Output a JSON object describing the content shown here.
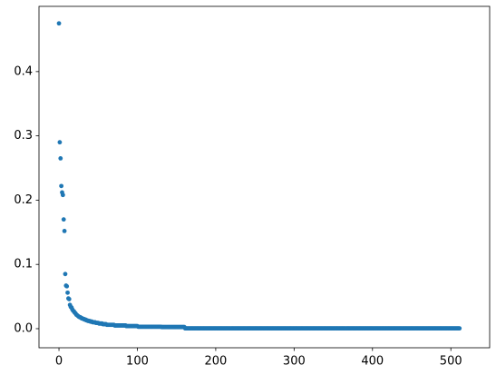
{
  "chart_data": {
    "type": "scatter",
    "color": "#1f77b4",
    "x": [
      0,
      1,
      2,
      3,
      4,
      5,
      6,
      7,
      8,
      9,
      10,
      11,
      12,
      13,
      14,
      15,
      16,
      17,
      18,
      19,
      20,
      21,
      22,
      23,
      24,
      25,
      26,
      27,
      28,
      29,
      30,
      31,
      32,
      33,
      34,
      35,
      36,
      37,
      38,
      39,
      40,
      41,
      42,
      43,
      44,
      45,
      46,
      47,
      48,
      49,
      50,
      51,
      52,
      53,
      54,
      55,
      56,
      57,
      58,
      59,
      60,
      61,
      62,
      63,
      64,
      65,
      66,
      67,
      68,
      69,
      70,
      71,
      72,
      73,
      74,
      75,
      76,
      77,
      78,
      79,
      80,
      81,
      82,
      83,
      84,
      85,
      86,
      87,
      88,
      89,
      90,
      91,
      92,
      93,
      94,
      95,
      96,
      97,
      98,
      99,
      100,
      101,
      102,
      103,
      104,
      105,
      106,
      107,
      108,
      109,
      110,
      111,
      112,
      113,
      114,
      115,
      116,
      117,
      118,
      119,
      120,
      121,
      122,
      123,
      124,
      125,
      126,
      127,
      128,
      129,
      130,
      131,
      132,
      133,
      134,
      135,
      136,
      137,
      138,
      139,
      140,
      141,
      142,
      143,
      144,
      145,
      146,
      147,
      148,
      149,
      150,
      151,
      152,
      153,
      154,
      155,
      156,
      157,
      158,
      159,
      160,
      161,
      162,
      163,
      164,
      165,
      166,
      167,
      168,
      169,
      170,
      171,
      172,
      173,
      174,
      175,
      176,
      177,
      178,
      179,
      180,
      181,
      182,
      183,
      184,
      185,
      186,
      187,
      188,
      189,
      190,
      191,
      192,
      193,
      194,
      195,
      196,
      197,
      198,
      199,
      200,
      201,
      202,
      203,
      204,
      205,
      206,
      207,
      208,
      209,
      210,
      211,
      212,
      213,
      214,
      215,
      216,
      217,
      218,
      219,
      220,
      221,
      222,
      223,
      224,
      225,
      226,
      227,
      228,
      229,
      230,
      231,
      232,
      233,
      234,
      235,
      236,
      237,
      238,
      239,
      240,
      241,
      242,
      243,
      244,
      245,
      246,
      247,
      248,
      249,
      250,
      251,
      252,
      253,
      254,
      255,
      256,
      257,
      258,
      259,
      260,
      261,
      262,
      263,
      264,
      265,
      266,
      267,
      268,
      269,
      270,
      271,
      272,
      273,
      274,
      275,
      276,
      277,
      278,
      279,
      280,
      281,
      282,
      283,
      284,
      285,
      286,
      287,
      288,
      289,
      290,
      291,
      292,
      293,
      294,
      295,
      296,
      297,
      298,
      299,
      300,
      301,
      302,
      303,
      304,
      305,
      306,
      307,
      308,
      309,
      310,
      311,
      312,
      313,
      314,
      315,
      316,
      317,
      318,
      319,
      320,
      321,
      322,
      323,
      324,
      325,
      326,
      327,
      328,
      329,
      330,
      331,
      332,
      333,
      334,
      335,
      336,
      337,
      338,
      339,
      340,
      341,
      342,
      343,
      344,
      345,
      346,
      347,
      348,
      349,
      350,
      351,
      352,
      353,
      354,
      355,
      356,
      357,
      358,
      359,
      360,
      361,
      362,
      363,
      364,
      365,
      366,
      367,
      368,
      369,
      370,
      371,
      372,
      373,
      374,
      375,
      376,
      377,
      378,
      379,
      380,
      381,
      382,
      383,
      384,
      385,
      386,
      387,
      388,
      389,
      390,
      391,
      392,
      393,
      394,
      395,
      396,
      397,
      398,
      399,
      400,
      401,
      402,
      403,
      404,
      405,
      406,
      407,
      408,
      409,
      410,
      411,
      412,
      413,
      414,
      415,
      416,
      417,
      418,
      419,
      420,
      421,
      422,
      423,
      424,
      425,
      426,
      427,
      428,
      429,
      430,
      431,
      432,
      433,
      434,
      435,
      436,
      437,
      438,
      439,
      440,
      441,
      442,
      443,
      444,
      445,
      446,
      447,
      448,
      449,
      450,
      451,
      452,
      453,
      454,
      455,
      456,
      457,
      458,
      459,
      460,
      461,
      462,
      463,
      464,
      465,
      466,
      467,
      468,
      469,
      470,
      471,
      472,
      473,
      474,
      475,
      476,
      477,
      478,
      479,
      480,
      481,
      482,
      483,
      484,
      485,
      486,
      487,
      488,
      489,
      490,
      491,
      492,
      493,
      494,
      495,
      496,
      497,
      498,
      499,
      500,
      501,
      502,
      503,
      504,
      505,
      506,
      507,
      508,
      509,
      510,
      511
    ],
    "values": [
      0.475,
      0.29,
      0.265,
      0.222,
      0.212,
      0.208,
      0.17,
      0.152,
      0.085,
      0.067,
      0.066,
      0.056,
      0.047,
      0.046,
      0.037,
      0.034,
      0.033,
      0.03,
      0.028,
      0.027,
      0.025,
      0.024,
      0.022,
      0.021,
      0.02,
      0.019,
      0.018,
      0.018,
      0.017,
      0.016,
      0.016,
      0.015,
      0.015,
      0.014,
      0.014,
      0.013,
      0.013,
      0.012,
      0.012,
      0.012,
      0.011,
      0.011,
      0.011,
      0.01,
      0.01,
      0.01,
      0.01,
      0.009,
      0.009,
      0.009,
      0.009,
      0.008,
      0.008,
      0.008,
      0.008,
      0.008,
      0.007,
      0.007,
      0.007,
      0.007,
      0.007,
      0.006,
      0.006,
      0.006,
      0.006,
      0.006,
      0.006,
      0.006,
      0.006,
      0.006,
      0.006,
      0.005,
      0.005,
      0.005,
      0.005,
      0.005,
      0.005,
      0.005,
      0.005,
      0.005,
      0.005,
      0.005,
      0.005,
      0.005,
      0.005,
      0.005,
      0.004,
      0.004,
      0.004,
      0.004,
      0.004,
      0.004,
      0.004,
      0.004,
      0.004,
      0.004,
      0.004,
      0.004,
      0.004,
      0.004,
      0.004,
      0.003,
      0.003,
      0.003,
      0.003,
      0.003,
      0.003,
      0.003,
      0.003,
      0.003,
      0.003,
      0.003,
      0.003,
      0.003,
      0.003,
      0.003,
      0.003,
      0.003,
      0.003,
      0.003,
      0.003,
      0.003,
      0.003,
      0.003,
      0.003,
      0.003,
      0.003,
      0.003,
      0.003,
      0.003,
      0.003,
      0.0025,
      0.0025,
      0.0025,
      0.0025,
      0.0025,
      0.0025,
      0.0025,
      0.0025,
      0.0025,
      0.0025,
      0.0025,
      0.0025,
      0.0025,
      0.0025,
      0.0025,
      0.0025,
      0.0025,
      0.0025,
      0.0025,
      0.0025,
      0.0025,
      0.0025,
      0.0025,
      0.0025,
      0.0025,
      0.0025,
      0.0025,
      0.0025,
      0.0025,
      0.0025,
      0.0005,
      0.0005,
      0.0005,
      0.0005,
      0.0005,
      0.0005,
      0.0005,
      0.0005,
      0.0005,
      0.0005,
      0.0005,
      0.0005,
      0.0005,
      0.0005,
      0.0005,
      0.0005,
      0.0005,
      0.0005,
      0.0005,
      0.0005,
      0.0005,
      0.0005,
      0.0005,
      0.0005,
      0.0005,
      0.0005,
      0.0005,
      0.0005,
      0.0005,
      0.0005,
      0.0005,
      0.0005,
      0.0005,
      0.0005,
      0.0005,
      0.0005,
      0.0005,
      0.0005,
      0.0005,
      0.0005,
      0.0005,
      0.0005,
      0.0005,
      0.0005,
      0.0005,
      0.0005,
      0.0005,
      0.0005,
      0.0005,
      0.0005,
      0.0005,
      0.0005,
      0.0005,
      0.0005,
      0.0005,
      0.0005,
      0.0005,
      0.0005,
      0.0005,
      0.0005,
      0.0005,
      0.0005,
      0.0005,
      0.0005,
      0.0005,
      0.0005,
      0.0005,
      0.0005,
      0.0005,
      0.0005,
      0.0005,
      0.0005,
      0.0005,
      0.0005,
      0.0005,
      0.0005,
      0.0005,
      0.0005,
      0.0005,
      0.0005,
      0.0005,
      0.0005,
      0.0005,
      0.0005,
      0.0005,
      0.0005,
      0.0005,
      0.0005,
      0.0005,
      0.0005,
      0.0005,
      0.0005,
      0.0005,
      0.0005,
      0.0005,
      0.0005,
      0.0005,
      0.0005,
      0.0005,
      0.0005,
      0.0005,
      0.0005,
      0.0005,
      0.0005,
      0.0005,
      0.0005,
      0.0005,
      0.0005,
      0.0005,
      0.0005,
      0.0005,
      0.0005,
      0.0005,
      0.0005,
      0.0005,
      0.0005,
      0.0005,
      0.0005,
      0.0005,
      0.0005,
      0.0005,
      0.0005,
      0.0005,
      0.0005,
      0.0005,
      0.0005,
      0.0005,
      0.0005,
      0.0005,
      0.0005,
      0.0005,
      0.0005,
      0.0005,
      0.0005,
      0.0005,
      0.0005,
      0.0005,
      0.0005,
      0.0005,
      0.0005,
      0.0005,
      0.0005,
      0.0005,
      0.0005,
      0.0005,
      0.0005,
      0.0005,
      0.0005,
      0.0005,
      0.0005,
      0.0005,
      0.0005,
      0.0005,
      0.0005,
      0.0005,
      0.0005,
      0.0005,
      0.0005,
      0.0005,
      0.0005,
      0.0005,
      0.0005,
      0.0005,
      0.0005,
      0.0005,
      0.0005,
      0.0005,
      0.0005,
      0.0005,
      0.0005,
      0.0005,
      0.0005,
      0.0005,
      0.0005,
      0.0005,
      0.0005,
      0.0005,
      0.0005,
      0.0005,
      0.0005,
      0.0005,
      0.0005,
      0.0005,
      0.0005,
      0.0005,
      0.0005,
      0.0005,
      0.0005,
      0.0005,
      0.0005,
      0.0005,
      0.0005,
      0.0005,
      0.0005,
      0.0005,
      0.0005,
      0.0005,
      0.0005,
      0.0005,
      0.0005,
      0.0005,
      0.0005,
      0.0005,
      0.0005,
      0.0005,
      0.0005,
      0.0005,
      0.0005,
      0.0005,
      0.0005,
      0.0005,
      0.0005,
      0.0005,
      0.0005,
      0.0005,
      0.0005,
      0.0005,
      0.0005,
      0.0005,
      0.0005,
      0.0005,
      0.0005,
      0.0005,
      0.0005,
      0.0005,
      0.0005,
      0.0005,
      0.0005,
      0.0005,
      0.0005,
      0.0005,
      0.0005,
      0.0005,
      0.0005,
      0.0005,
      0.0005,
      0.0005,
      0.0005,
      0.0005,
      0.0005,
      0.0005,
      0.0005,
      0.0005,
      0.0005,
      0.0005,
      0.0005,
      0.0005,
      0.0005,
      0.0005,
      0.0005,
      0.0005,
      0.0005,
      0.0005,
      0.0005,
      0.0005,
      0.0005,
      0.0005,
      0.0005,
      0.0005,
      0.0005,
      0.0005,
      0.0005,
      0.0005,
      0.0005,
      0.0005,
      0.0005,
      0.0005,
      0.0005,
      0.0005,
      0.0005,
      0.0005,
      0.0005,
      0.0005,
      0.0005,
      0.0005,
      0.0005,
      0.0005,
      0.0005,
      0.0005,
      0.0005,
      0.0005,
      0.0005,
      0.0005,
      0.0005,
      0.0005,
      0.0005,
      0.0005,
      0.0005,
      0.0005,
      0.0005,
      0.0005,
      0.0005,
      0.0005,
      0.0005,
      0.0005,
      0.0005,
      0.0005,
      0.0005,
      0.0005,
      0.0005,
      0.0005,
      0.0005,
      0.0005,
      0.0005,
      0.0005,
      0.0005,
      0.0005,
      0.0005,
      0.0005,
      0.0005,
      0.0005,
      0.0005,
      0.0005,
      0.0005,
      0.0005,
      0.0005,
      0.0005,
      0.0005,
      0.0005,
      0.0005,
      0.0005,
      0.0005,
      0.0005,
      0.0005,
      0.0005,
      0.0005,
      0.0005,
      0.0005,
      0.0005,
      0.0005,
      0.0005,
      0.0005,
      0.0005,
      0.0005,
      0.0005,
      0.0005,
      0.0005,
      0.0005,
      0.0005,
      0.0005,
      0.0005,
      0.0005,
      0.0005,
      0.0005,
      0.0005,
      0.0005,
      0.0005,
      0.0005,
      0.0005,
      0.0005,
      0.0005
    ],
    "xlim": [
      -25.5,
      549.5
    ],
    "xticks": [
      0,
      100,
      200,
      300,
      400,
      500
    ],
    "ylim": [
      -0.0297,
      0.5015
    ],
    "yticks": [
      {
        "value": 0,
        "label": "0.0"
      },
      0.1,
      0.2,
      0.3,
      0.4
    ],
    "grid": false
  }
}
